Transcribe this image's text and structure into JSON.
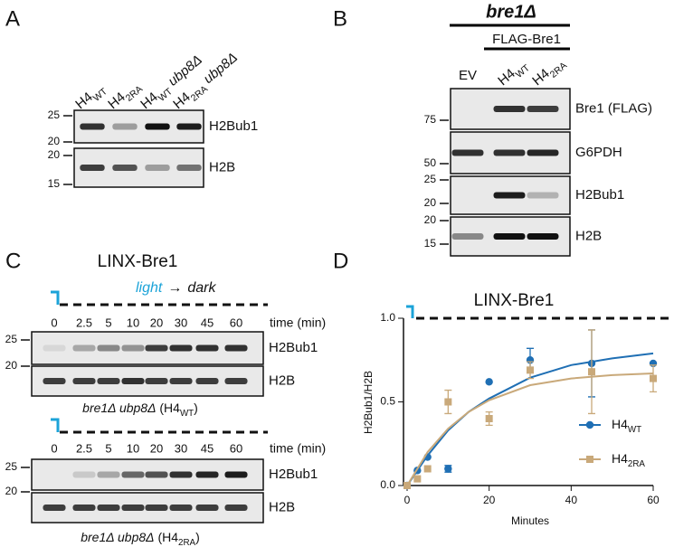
{
  "panels": {
    "A": {
      "letter": "A",
      "lanes": [
        {
          "text": "H4",
          "sub": "WT"
        },
        {
          "text": "H4",
          "sub": "2RA"
        },
        {
          "text": "H4",
          "sub": "WT",
          "italic_after": " ubp8Δ"
        },
        {
          "text": "H4",
          "sub": "2RA",
          "italic_after": " ubp8Δ"
        }
      ],
      "blots": [
        {
          "label": "H2Bub1",
          "markers": [
            "25",
            "20"
          ]
        },
        {
          "label": "H2B",
          "markers": [
            "20",
            "15"
          ]
        }
      ]
    },
    "B": {
      "letter": "B",
      "strain": "bre1Δ",
      "group": "FLAG-Bre1",
      "lanes": [
        {
          "text": "EV"
        },
        {
          "text": "H4",
          "sub": "WT"
        },
        {
          "text": "H4",
          "sub": "2RA"
        }
      ],
      "blots": [
        {
          "label": "Bre1 (FLAG)",
          "markers": [
            "75"
          ]
        },
        {
          "label": "G6PDH",
          "markers": [
            "50"
          ]
        },
        {
          "label": "H2Bub1",
          "markers": [
            "25",
            "20"
          ]
        },
        {
          "label": "H2B",
          "markers": [
            "20",
            "15"
          ]
        }
      ]
    },
    "C": {
      "letter": "C",
      "title": "LINX-Bre1",
      "light": "light",
      "arrow": "→",
      "dark": "dark",
      "time_label": "time (min)",
      "timepoints": [
        "0",
        "2.5",
        "5",
        "10",
        "20",
        "30",
        "45",
        "60"
      ],
      "sets": [
        {
          "blots": [
            {
              "label": "H2Bub1",
              "markers": [
                "25",
                "20"
              ]
            },
            {
              "label": "H2B"
            }
          ],
          "caption": {
            "italic": "bre1Δ ubp8Δ",
            "text": " (H4",
            "sub": "WT",
            "after": ")"
          }
        },
        {
          "blots": [
            {
              "label": "H2Bub1",
              "markers": [
                "25",
                "20"
              ]
            },
            {
              "label": "H2B"
            }
          ],
          "caption": {
            "italic": "bre1Δ ubp8Δ",
            "text": " (H4",
            "sub": "2RA",
            "after": ")"
          }
        }
      ]
    }
  },
  "chart_data": {
    "type": "scatter",
    "letter": "D",
    "title": "LINX-Bre1",
    "xlabel": "Minutes",
    "ylabel": "H2Bub1/H2B",
    "x": [
      0,
      2.5,
      5,
      10,
      20,
      30,
      45,
      60
    ],
    "fit_x": [
      0,
      5,
      10,
      15,
      20,
      30,
      40,
      50,
      60
    ],
    "series": [
      {
        "name": {
          "text": "H4",
          "sub": "WT"
        },
        "color": "#1f6fb4",
        "marker": "circle",
        "values": [
          0.0,
          0.09,
          0.17,
          0.1,
          0.62,
          0.75,
          0.73,
          0.73
        ],
        "errors": [
          null,
          null,
          null,
          0.02,
          null,
          0.07,
          0.2,
          null
        ],
        "fit_values": [
          0,
          0.18,
          0.33,
          0.44,
          0.52,
          0.645,
          0.72,
          0.76,
          0.79
        ]
      },
      {
        "name": {
          "text": "H4",
          "sub": "2RA"
        },
        "color": "#c9a97a",
        "marker": "square",
        "values": [
          0.0,
          0.04,
          0.1,
          0.5,
          0.4,
          0.69,
          0.68,
          0.64
        ],
        "errors": [
          null,
          null,
          null,
          0.07,
          0.04,
          0.05,
          0.25,
          0.08
        ],
        "fit_values": [
          0,
          0.2,
          0.34,
          0.44,
          0.51,
          0.6,
          0.64,
          0.66,
          0.67
        ]
      }
    ],
    "xlim": [
      0,
      60
    ],
    "ylim": [
      0,
      1
    ],
    "xticks": [
      0,
      20,
      40,
      60
    ],
    "yticks": [
      {
        "value": 0,
        "label": "0.0"
      },
      {
        "value": 0.5,
        "label": "0.5"
      },
      {
        "value": 1,
        "label": "1.0"
      }
    ]
  }
}
